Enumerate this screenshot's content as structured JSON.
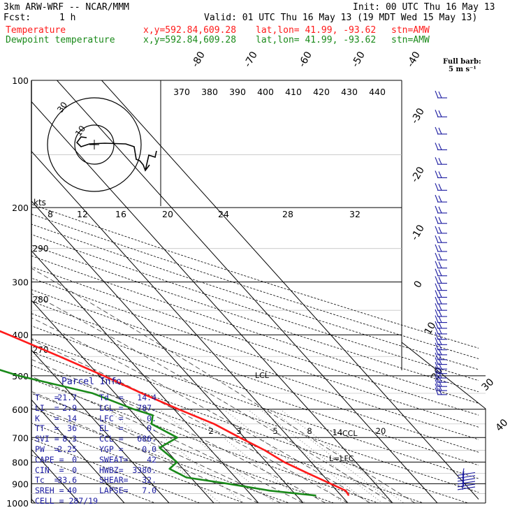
{
  "header": {
    "model": "3km ARW-WRF -- NCAR/MMM",
    "init": "Init: 00 UTC Thu 16 May 13",
    "fcst_label": "Fcst:",
    "fcst_value": "1 h",
    "valid": "Valid: 01 UTC Thu 16 May 13 (19 MDT Wed 15 May 13)",
    "temp_name": "Temperature",
    "dew_name": "Dewpoint temperature",
    "xy": "x,y=592.84,609.28",
    "latlon": "lat,lon= 41.99, -93.62",
    "stn": "stn=AMW"
  },
  "colors": {
    "temperature": "#ff1a1a",
    "dewpoint": "#1a8a1a",
    "parcel": "#1a1aa0",
    "wind": "#1a1aa0"
  },
  "chart_data": {
    "type": "line",
    "p_ticks": [
      100,
      200,
      300,
      400,
      500,
      600,
      700,
      800,
      900,
      1000
    ],
    "p_range": [
      100,
      1000
    ],
    "isotherm_labels": [
      "-80",
      "-70",
      "-60",
      "-50",
      "-40",
      "-30",
      "-20",
      "-10",
      "0",
      "10",
      "20",
      "30",
      "40"
    ],
    "theta_labels": [
      "370",
      "380",
      "390",
      "400",
      "410",
      "420",
      "430",
      "440"
    ],
    "theta_side_labels": [
      "290",
      "280",
      "270"
    ],
    "mixing_top_labels": [
      "8",
      "12",
      "16",
      "20",
      "24",
      "28",
      "32"
    ],
    "mixing_low_labels": [
      "2",
      "3",
      "5",
      "8",
      "14",
      "20"
    ],
    "lcl_label": "LCL",
    "lfc_label": "L=LFC",
    "ccl_label": "CCL",
    "series": [
      {
        "name": "Temperature",
        "key": "temperature",
        "points": [
          [
            100,
            -65
          ],
          [
            140,
            -60
          ],
          [
            180,
            -57
          ],
          [
            200,
            -57
          ],
          [
            250,
            -48
          ],
          [
            300,
            -40
          ],
          [
            400,
            -22
          ],
          [
            450,
            -15
          ],
          [
            500,
            -9
          ],
          [
            550,
            -4
          ],
          [
            600,
            1
          ],
          [
            650,
            6
          ],
          [
            700,
            9
          ],
          [
            750,
            12
          ],
          [
            800,
            14
          ],
          [
            850,
            17
          ],
          [
            900,
            20
          ],
          [
            935,
            22
          ],
          [
            960,
            21.7
          ]
        ]
      },
      {
        "name": "Dewpoint temperature",
        "key": "dewpoint",
        "points": [
          [
            100,
            -83
          ],
          [
            150,
            -80
          ],
          [
            200,
            -78
          ],
          [
            250,
            -72
          ],
          [
            300,
            -66
          ],
          [
            350,
            -52
          ],
          [
            400,
            -45
          ],
          [
            450,
            -38
          ],
          [
            500,
            -28
          ],
          [
            550,
            -15
          ],
          [
            600,
            -9
          ],
          [
            620,
            -6
          ],
          [
            650,
            -8
          ],
          [
            700,
            -5
          ],
          [
            740,
            -11
          ],
          [
            800,
            -10
          ],
          [
            830,
            -13
          ],
          [
            870,
            -11
          ],
          [
            900,
            -3
          ],
          [
            935,
            5
          ],
          [
            960,
            14.4
          ]
        ]
      }
    ],
    "hodograph": {
      "ring_labels": [
        "10",
        "30"
      ],
      "units": "kts"
    },
    "wind_key": {
      "title": "Full barb:",
      "value": "5 m s⁻¹"
    }
  },
  "parcel": {
    "title": "Parcel Info",
    "rows": [
      [
        "T   =",
        "21.7",
        "Td  =",
        "14.4"
      ],
      [
        "LI  =",
        "2.9",
        "LCL =",
        "787."
      ],
      [
        "K   =",
        "14",
        "LFC =",
        "0."
      ],
      [
        "TT  =",
        "36",
        "EL  =",
        "0."
      ],
      [
        "SVI =",
        "8.3",
        "CCL =",
        "686."
      ],
      [
        "PW  =",
        "2.25",
        "YGP =",
        "0.0"
      ],
      [
        "CAPE =",
        "0",
        "SWEAT=",
        "42"
      ],
      [
        "CIN  =",
        "0",
        "HWBZ=",
        "3380."
      ],
      [
        "Tc  =",
        "33.6",
        "SHEAR=",
        "32."
      ],
      [
        "SREH =",
        "40",
        "LAPSE=",
        "7.0"
      ]
    ],
    "cell": "CELL = 287/19"
  }
}
